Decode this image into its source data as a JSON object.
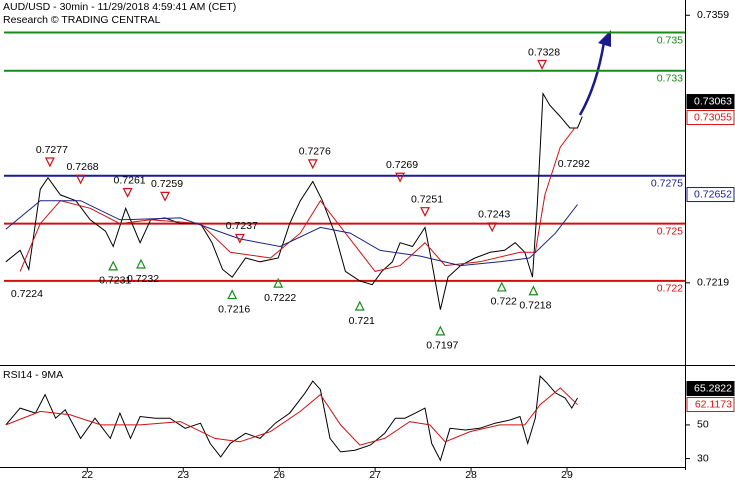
{
  "chart_data": [
    {
      "type": "line",
      "title": "AUD/USD - 30min - 11/29/2018 4:59:41 AM (CET)",
      "subtitle": "Research © TRADING CENTRAL",
      "xlim": [
        0.09,
        7.23
      ],
      "ylim": [
        0.7176,
        0.7367
      ],
      "yticks": [
        0.7359,
        0.7219
      ],
      "series": [
        {
          "color": "#000000",
          "x": [
            0.15,
            0.3,
            0.39,
            0.51,
            0.59,
            0.72,
            0.88,
            1.03,
            1.19,
            1.27,
            1.4,
            1.55,
            1.66,
            1.81,
            1.97,
            2.18,
            2.3,
            2.41,
            2.51,
            2.65,
            2.8,
            2.99,
            3.11,
            3.22,
            3.35,
            3.45,
            3.58,
            3.69,
            3.84,
            3.97,
            4.07,
            4.18,
            4.26,
            4.39,
            4.52,
            4.59,
            4.68,
            4.76,
            4.89,
            5.04,
            5.2,
            5.35,
            5.46,
            5.56,
            5.64,
            5.69,
            5.75,
            5.82,
            5.93,
            6.03,
            6.11,
            6.16
          ],
          "values": [
            0.723,
            0.7236,
            0.7226,
            0.7268,
            0.7274,
            0.7265,
            0.7262,
            0.7252,
            0.7246,
            0.7238,
            0.7258,
            0.724,
            0.7252,
            0.7253,
            0.725,
            0.725,
            0.724,
            0.7226,
            0.7222,
            0.7232,
            0.723,
            0.7232,
            0.725,
            0.7262,
            0.7272,
            0.7262,
            0.7245,
            0.7225,
            0.722,
            0.7218,
            0.7225,
            0.723,
            0.724,
            0.7238,
            0.7248,
            0.723,
            0.7205,
            0.7222,
            0.7228,
            0.7232,
            0.7235,
            0.7236,
            0.724,
            0.7235,
            0.7222,
            0.726,
            0.7318,
            0.7312,
            0.7306,
            0.73,
            0.73,
            0.7306
          ]
        },
        {
          "color": "#d01010",
          "x": [
            0.3,
            0.51,
            0.72,
            1.03,
            1.34,
            1.66,
            2.18,
            2.49,
            2.91,
            3.22,
            3.43,
            3.69,
            4.0,
            4.26,
            4.52,
            4.73,
            5.09,
            5.51,
            5.67,
            5.77,
            5.93,
            6.08
          ],
          "values": [
            0.7225,
            0.725,
            0.7262,
            0.7258,
            0.725,
            0.7252,
            0.725,
            0.7235,
            0.7232,
            0.7245,
            0.7262,
            0.7245,
            0.7225,
            0.7228,
            0.724,
            0.7228,
            0.723,
            0.7235,
            0.7235,
            0.7265,
            0.729,
            0.73
          ]
        },
        {
          "color": "#1a237e",
          "x": [
            0.15,
            0.51,
            0.93,
            1.34,
            1.97,
            2.59,
            3.01,
            3.43,
            3.74,
            4.05,
            4.47,
            4.89,
            5.3,
            5.61,
            5.88,
            6.11
          ],
          "values": [
            0.7247,
            0.7262,
            0.7262,
            0.7252,
            0.7253,
            0.7242,
            0.7238,
            0.7248,
            0.7245,
            0.7236,
            0.7233,
            0.7228,
            0.723,
            0.7232,
            0.7245,
            0.726
          ]
        }
      ],
      "levels": [
        {
          "value": 0.735,
          "color": "#1a8a1a"
        },
        {
          "value": 0.733,
          "color": "#1a8a1a"
        },
        {
          "value": 0.7275,
          "color": "#1a1a9a"
        },
        {
          "value": 0.725,
          "color": "#d01010"
        },
        {
          "value": 0.722,
          "color": "#d01010"
        }
      ],
      "price_tags": [
        {
          "value": 0.73063,
          "color": "#000000",
          "filled": true
        },
        {
          "value": 0.73055,
          "color": "#e01010",
          "filled": false
        },
        {
          "value": 0.72652,
          "color": "#1a1a9a",
          "filled": false
        }
      ],
      "annotations": [
        {
          "x": 0.61,
          "value": 0.7277,
          "side": "above",
          "marker": true
        },
        {
          "x": 0.93,
          "value": 0.7268,
          "side": "above",
          "marker": true
        },
        {
          "x": 1.42,
          "value": 0.7261,
          "side": "above",
          "marker": true
        },
        {
          "x": 1.81,
          "value": 0.7259,
          "side": "above",
          "marker": true
        },
        {
          "x": 2.59,
          "value": 0.7237,
          "side": "above",
          "marker": true
        },
        {
          "x": 3.35,
          "value": 0.7276,
          "side": "above",
          "marker": true
        },
        {
          "x": 4.26,
          "value": 0.7269,
          "side": "above",
          "marker": true
        },
        {
          "x": 4.52,
          "value": 0.7251,
          "side": "above",
          "marker": true
        },
        {
          "x": 5.22,
          "value": 0.7243,
          "side": "above",
          "marker": true
        },
        {
          "x": 5.74,
          "value": 0.7328,
          "side": "above",
          "marker": true
        },
        {
          "x": 0.35,
          "value": 0.7224,
          "side": "below",
          "marker": false
        },
        {
          "x": 1.27,
          "value": 0.7231,
          "side": "below",
          "marker": true
        },
        {
          "x": 1.56,
          "value": 0.7232,
          "side": "below",
          "marker": true
        },
        {
          "x": 2.51,
          "value": 0.7216,
          "side": "below",
          "marker": true
        },
        {
          "x": 2.99,
          "value": 0.7222,
          "side": "below",
          "marker": true
        },
        {
          "x": 3.84,
          "value": 0.721,
          "side": "below",
          "marker": true
        },
        {
          "x": 4.68,
          "value": 0.7197,
          "side": "below",
          "marker": true
        },
        {
          "x": 5.32,
          "value": 0.722,
          "side": "below",
          "marker": true
        },
        {
          "x": 5.65,
          "value": 0.7218,
          "side": "below",
          "marker": true
        },
        {
          "x": 6.05,
          "value": 0.7292,
          "side": "below",
          "marker": false
        }
      ]
    },
    {
      "type": "line",
      "title": "RSI14 - 9MA",
      "xlim": [
        0.09,
        7.23
      ],
      "ylim": [
        25,
        85
      ],
      "yticks": [
        50,
        30
      ],
      "xticks": [
        {
          "value": 1,
          "label": "22"
        },
        {
          "value": 2,
          "label": "23"
        },
        {
          "value": 3,
          "label": "26"
        },
        {
          "value": 4,
          "label": "27"
        },
        {
          "value": 5,
          "label": "28"
        },
        {
          "value": 6,
          "label": "29"
        }
      ],
      "series": [
        {
          "color": "#000000",
          "x": [
            0.15,
            0.3,
            0.46,
            0.56,
            0.67,
            0.77,
            0.93,
            1.08,
            1.24,
            1.34,
            1.45,
            1.55,
            1.71,
            1.86,
            2.02,
            2.18,
            2.28,
            2.39,
            2.49,
            2.65,
            2.8,
            2.96,
            3.11,
            3.27,
            3.35,
            3.43,
            3.53,
            3.64,
            3.79,
            3.95,
            4.1,
            4.21,
            4.31,
            4.42,
            4.52,
            4.59,
            4.68,
            4.78,
            4.94,
            5.09,
            5.25,
            5.41,
            5.51,
            5.59,
            5.67,
            5.72,
            5.79,
            5.88,
            5.98,
            6.05,
            6.11
          ],
          "values": [
            50,
            60,
            57,
            68,
            54,
            59,
            42,
            54,
            42,
            57,
            42,
            55,
            54,
            54,
            48,
            51,
            39,
            31,
            39,
            45,
            42,
            51,
            57,
            69,
            76,
            71,
            42,
            34,
            35,
            38,
            45,
            54,
            54,
            57,
            60,
            39,
            29,
            48,
            47,
            48,
            51,
            53,
            55,
            39,
            54,
            79,
            75,
            69,
            66,
            60,
            66
          ]
        },
        {
          "color": "#d01010",
          "x": [
            0.15,
            0.51,
            0.82,
            1.14,
            1.55,
            1.97,
            2.33,
            2.59,
            2.91,
            3.22,
            3.43,
            3.64,
            3.84,
            4.1,
            4.36,
            4.57,
            4.73,
            4.99,
            5.3,
            5.56,
            5.72,
            5.93,
            6.11
          ],
          "values": [
            50,
            58,
            56,
            50,
            50,
            52,
            42,
            40,
            46,
            58,
            68,
            50,
            38,
            42,
            52,
            50,
            40,
            46,
            50,
            50,
            62,
            72,
            62
          ]
        }
      ],
      "price_tags": [
        {
          "value": 65.2822,
          "color": "#000000",
          "filled": true
        },
        {
          "value": 62.1173,
          "color": "#e01010",
          "filled": false
        }
      ]
    }
  ]
}
